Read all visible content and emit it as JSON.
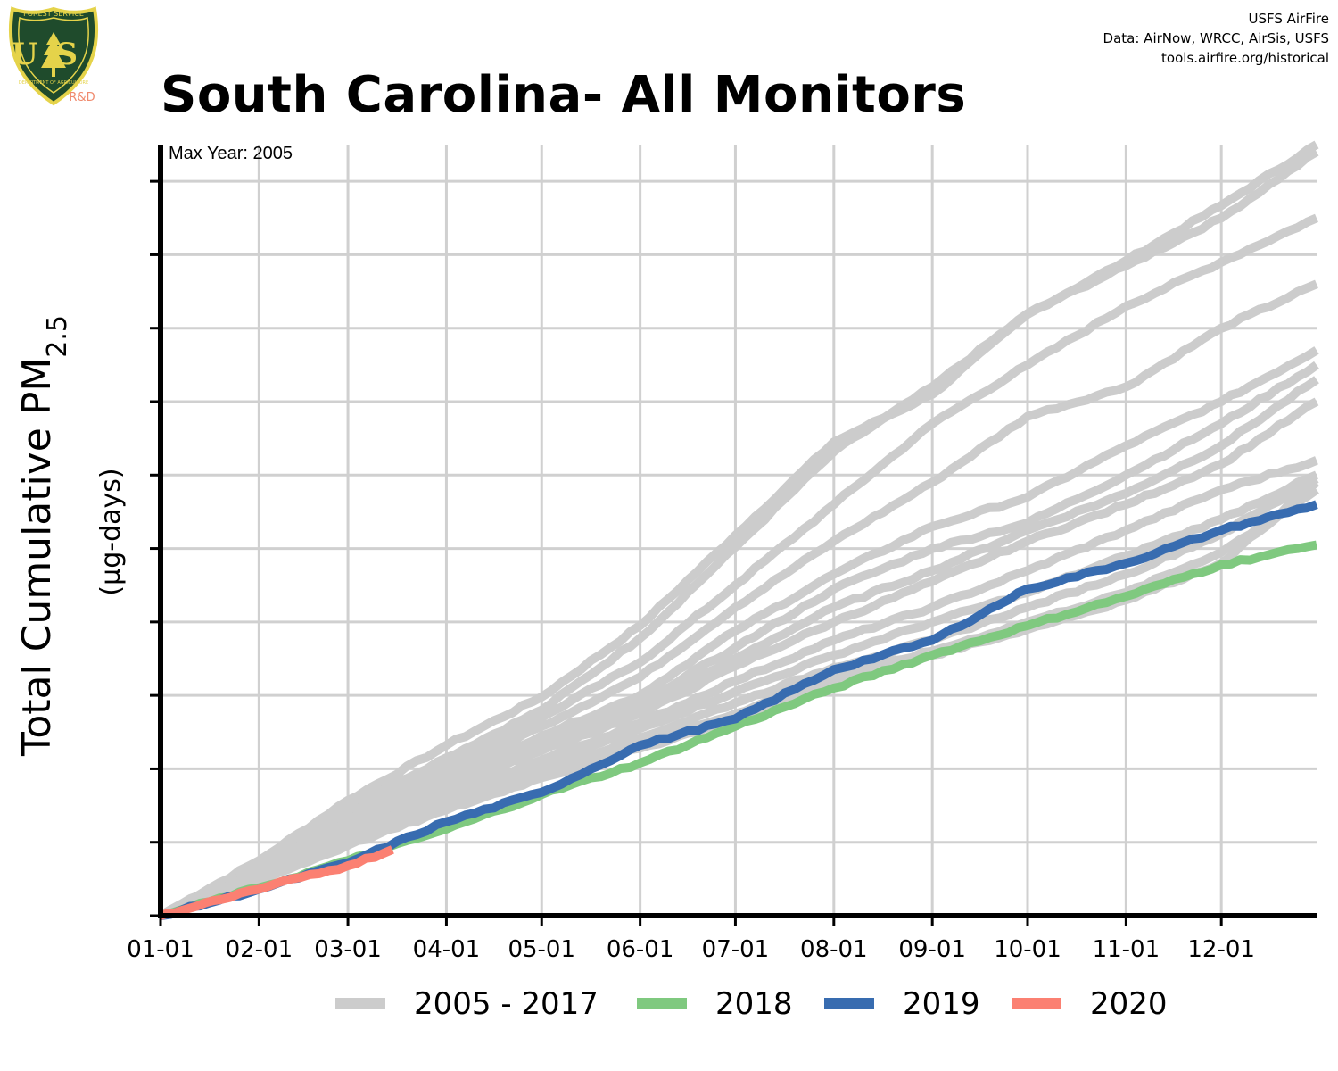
{
  "header": {
    "title": "South Carolina- All Monitors",
    "credits": [
      "USFS AirFire",
      "Data: AirNow, WRCC, AirSis, USFS",
      "tools.airfire.org/historical"
    ],
    "logo": {
      "top_text": "FOREST SERVICE",
      "letters": "US",
      "bottom_text": "DEPARTMENT OF AGRICULTURE",
      "badge": "R&D",
      "colors": {
        "shield": "#1f4b2c",
        "trim": "#e5d34a",
        "badge": "#f08a6d"
      }
    }
  },
  "chart_data": {
    "type": "line",
    "title": "South Carolina- All Monitors",
    "ylabel_main": "Total Cumulative PM",
    "ylabel_sub": "2.5",
    "ylabel_units": "(µg-days)",
    "annotation": "Max Year: 2005",
    "xlim": [
      1,
      365
    ],
    "ylim": [
      0,
      1050
    ],
    "x_ticks": [
      {
        "label": "01-01",
        "doy": 1
      },
      {
        "label": "02-01",
        "doy": 32
      },
      {
        "label": "03-01",
        "doy": 60
      },
      {
        "label": "04-01",
        "doy": 91
      },
      {
        "label": "05-01",
        "doy": 121
      },
      {
        "label": "06-01",
        "doy": 152
      },
      {
        "label": "07-01",
        "doy": 182
      },
      {
        "label": "08-01",
        "doy": 213
      },
      {
        "label": "09-01",
        "doy": 244
      },
      {
        "label": "10-01",
        "doy": 274
      },
      {
        "label": "11-01",
        "doy": 305
      },
      {
        "label": "12-01",
        "doy": 335
      }
    ],
    "y_gridlines": [
      100,
      200,
      300,
      400,
      500,
      600,
      700,
      800,
      900,
      1000
    ],
    "grid": true,
    "legend_position": "bottom",
    "legend": [
      {
        "label": "2005 - 2017",
        "color": "#cccccc"
      },
      {
        "label": "2018",
        "color": "#7fc97f"
      },
      {
        "label": "2019",
        "color": "#386cb0"
      },
      {
        "label": "2020",
        "color": "#fb8072"
      }
    ],
    "series": [
      {
        "group": "2005 - 2017",
        "color": "#cccccc",
        "x": [
          1,
          32,
          60,
          91,
          121,
          152,
          182,
          213,
          244,
          274,
          305,
          335,
          365
        ],
        "y": [
          0,
          75,
          157,
          232,
          298,
          395,
          518,
          645,
          710,
          819,
          892,
          967,
          1050
        ]
      },
      {
        "group": "2005 - 2017",
        "color": "#cccccc",
        "x": [
          1,
          32,
          60,
          91,
          121,
          152,
          182,
          213,
          244,
          274,
          305,
          335,
          365
        ],
        "y": [
          0,
          72,
          148,
          215,
          280,
          378,
          502,
          632,
          720,
          820,
          885,
          950,
          1040
        ]
      },
      {
        "group": "2005 - 2017",
        "color": "#cccccc",
        "x": [
          1,
          32,
          60,
          91,
          121,
          152,
          182,
          213,
          244,
          274,
          305,
          335,
          365
        ],
        "y": [
          0,
          68,
          138,
          205,
          270,
          345,
          450,
          560,
          670,
          750,
          830,
          890,
          950
        ]
      },
      {
        "group": "2005 - 2017",
        "color": "#cccccc",
        "x": [
          1,
          32,
          60,
          91,
          121,
          152,
          182,
          213,
          244,
          274,
          305,
          335,
          365
        ],
        "y": [
          0,
          65,
          130,
          196,
          258,
          325,
          420,
          510,
          590,
          680,
          720,
          800,
          860
        ]
      },
      {
        "group": "2005 - 2017",
        "color": "#cccccc",
        "x": [
          1,
          32,
          60,
          91,
          121,
          152,
          182,
          213,
          244,
          274,
          305,
          335,
          365
        ],
        "y": [
          0,
          64,
          129,
          190,
          245,
          300,
          388,
          465,
          530,
          570,
          640,
          700,
          770
        ]
      },
      {
        "group": "2005 - 2017",
        "color": "#cccccc",
        "x": [
          1,
          32,
          60,
          91,
          121,
          152,
          182,
          213,
          244,
          274,
          305,
          335,
          365
        ],
        "y": [
          0,
          62,
          125,
          185,
          238,
          290,
          365,
          445,
          500,
          535,
          600,
          670,
          750
        ]
      },
      {
        "group": "2005 - 2017",
        "color": "#cccccc",
        "x": [
          1,
          32,
          60,
          91,
          121,
          152,
          182,
          213,
          244,
          274,
          305,
          335,
          365
        ],
        "y": [
          0,
          60,
          122,
          178,
          232,
          282,
          350,
          420,
          470,
          525,
          575,
          640,
          730
        ]
      },
      {
        "group": "2005 - 2017",
        "color": "#cccccc",
        "x": [
          1,
          32,
          60,
          91,
          121,
          152,
          182,
          213,
          244,
          274,
          305,
          335,
          365
        ],
        "y": [
          0,
          58,
          118,
          172,
          225,
          275,
          340,
          400,
          455,
          510,
          560,
          615,
          700
        ]
      },
      {
        "group": "2005 - 2017",
        "color": "#cccccc",
        "x": [
          1,
          32,
          60,
          91,
          121,
          152,
          182,
          213,
          244,
          274,
          305,
          335,
          365
        ],
        "y": [
          0,
          57,
          112,
          165,
          212,
          262,
          320,
          375,
          420,
          470,
          525,
          580,
          620
        ]
      },
      {
        "group": "2005 - 2017",
        "color": "#cccccc",
        "x": [
          1,
          32,
          60,
          91,
          121,
          152,
          182,
          213,
          244,
          274,
          305,
          335,
          365
        ],
        "y": [
          0,
          55,
          108,
          158,
          205,
          255,
          305,
          355,
          400,
          440,
          490,
          540,
          600
        ]
      },
      {
        "group": "2005 - 2017",
        "color": "#cccccc",
        "x": [
          1,
          32,
          60,
          91,
          121,
          152,
          182,
          213,
          244,
          274,
          305,
          335,
          365
        ],
        "y": [
          0,
          52,
          104,
          150,
          198,
          242,
          290,
          338,
          375,
          420,
          465,
          520,
          595
        ]
      },
      {
        "group": "2005 - 2017",
        "color": "#cccccc",
        "x": [
          1,
          32,
          60,
          91,
          121,
          152,
          182,
          213,
          244,
          274,
          305,
          335,
          365
        ],
        "y": [
          0,
          50,
          100,
          148,
          190,
          235,
          275,
          325,
          360,
          400,
          440,
          495,
          580
        ]
      },
      {
        "group": "2005 - 2017",
        "color": "#cccccc",
        "x": [
          1,
          32,
          60,
          91,
          121,
          152,
          182,
          213,
          244,
          274,
          305,
          335,
          365
        ],
        "y": [
          0,
          48,
          96,
          144,
          188,
          228,
          268,
          315,
          355,
          390,
          430,
          480,
          590
        ]
      },
      {
        "group": "2018",
        "color": "#7fc97f",
        "x": [
          1,
          32,
          60,
          91,
          121,
          152,
          182,
          213,
          244,
          274,
          305,
          335,
          365
        ],
        "y": [
          0,
          38,
          75,
          118,
          165,
          208,
          258,
          310,
          355,
          395,
          435,
          478,
          505
        ]
      },
      {
        "group": "2019",
        "color": "#386cb0",
        "x": [
          1,
          32,
          60,
          91,
          121,
          152,
          182,
          213,
          244,
          274,
          305,
          335,
          365
        ],
        "y": [
          0,
          36,
          72,
          128,
          168,
          232,
          268,
          335,
          375,
          445,
          480,
          525,
          560
        ]
      },
      {
        "group": "2020",
        "color": "#fb8072",
        "x": [
          1,
          10,
          20,
          32,
          45,
          60,
          74
        ],
        "y": [
          0,
          10,
          22,
          36,
          52,
          68,
          90
        ]
      }
    ]
  }
}
